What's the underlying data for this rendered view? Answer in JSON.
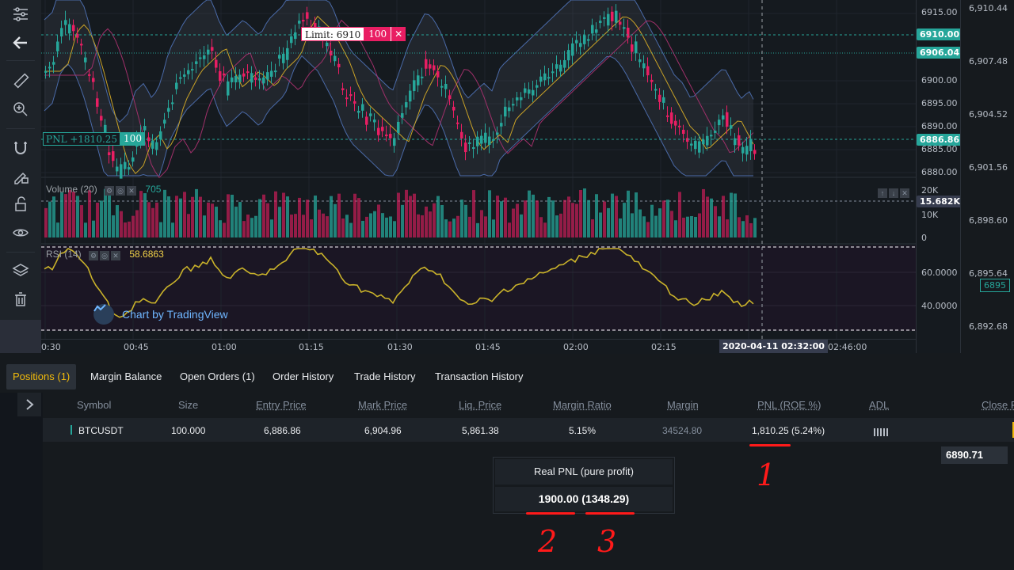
{
  "toolbar": {
    "items": [
      "menu-lines-icon",
      "arrow-left-icon",
      "ruler-icon",
      "zoom-in-icon",
      "magnet-icon",
      "lock-pencil-icon",
      "lock-icon",
      "eye-icon",
      "layers-icon",
      "trash-icon"
    ]
  },
  "chart": {
    "price_axis": [
      "6915.00",
      "6905.00",
      "6900.00",
      "6895.00",
      "6890.00",
      "6885.00",
      "6880.00"
    ],
    "outer_axis": [
      "6,910.44",
      "6,907.48",
      "6,904.52",
      "6,901.56",
      "6,898.60",
      "6,895.64",
      "6,892.68"
    ],
    "outer_tag": "6895",
    "tags": {
      "limit_price": "6910.00",
      "current_price": "6906.04",
      "pnl_price": "6886.86"
    },
    "limit_order": {
      "label": "Limit: 6910",
      "qty": "100",
      "close": "✕"
    },
    "pnl_order": {
      "label": "PNL +1810.25",
      "qty": "100"
    },
    "volume": {
      "label": "Volume (20)",
      "value": "705",
      "axis": [
        "20K",
        "15.682K",
        "10K",
        "0"
      ]
    },
    "rsi": {
      "label": "RSI (14)",
      "value": "58.6863",
      "axis": [
        "60.0000",
        "40.0000"
      ]
    },
    "watermark": "Chart by TradingView",
    "time_axis": [
      "0:30",
      "00:45",
      "01:00",
      "01:15",
      "01:30",
      "01:45",
      "02:00",
      "02:15",
      "2020-04-11 02:32:00",
      "02:46:00"
    ]
  },
  "tabs": [
    {
      "label": "Positions (1)",
      "active": true
    },
    {
      "label": "Margin Balance"
    },
    {
      "label": "Open Orders (1)"
    },
    {
      "label": "Order History"
    },
    {
      "label": "Trade History"
    },
    {
      "label": "Transaction History"
    }
  ],
  "positions": {
    "headers": [
      "Symbol",
      "Size",
      "Entry Price",
      "Mark Price",
      "Liq. Price",
      "Margin Ratio",
      "Margin",
      "PNL (ROE %)",
      "ADL",
      "Close F"
    ],
    "row": {
      "symbol": "BTCUSDT",
      "size": "100.000",
      "entry_price": "6,886.86",
      "mark_price": "6,904.96",
      "liq_price": "5,861.38",
      "margin_ratio": "5.15%",
      "margin": "34524.80",
      "pnl": "1,810.25 (5.24%)",
      "close_price": "6890.71"
    }
  },
  "real_pnl": {
    "title": "Real PNL (pure profit)",
    "value": "1900.00 (1348.29)"
  },
  "annotations": [
    "1",
    "2",
    "3"
  ],
  "colors": {
    "up": "#26a69a",
    "down": "#e91e63",
    "accent": "#f0b90b",
    "annotation": "#ff1a1a",
    "rsi": "#c9b22a"
  }
}
